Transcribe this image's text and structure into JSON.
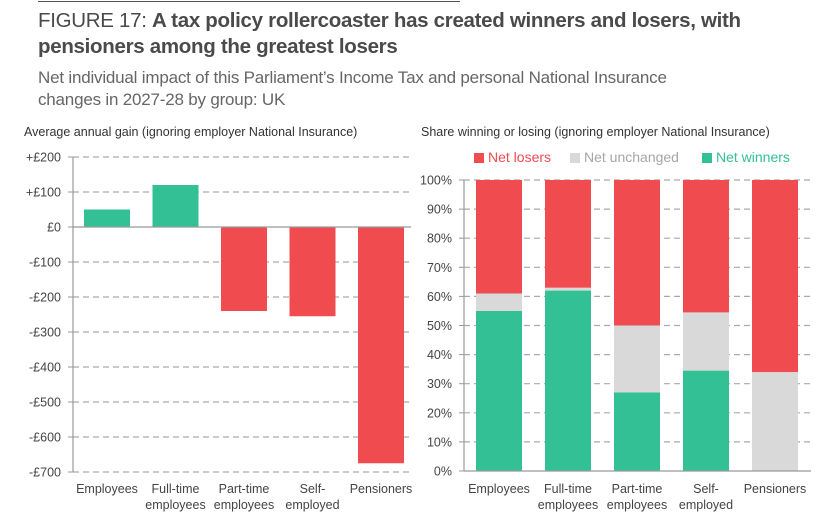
{
  "figure": {
    "prefix": "FIGURE 17: ",
    "title_line1": "A tax policy rollercoaster has created winners and losers, with",
    "title_line2": "pensioners among the greatest losers",
    "subtitle_line1": "Net individual impact of this Parliament’s Income Tax and personal National Insurance",
    "subtitle_line2": "changes in 2027-28 by group: UK"
  },
  "colors": {
    "gain": "#33C094",
    "loss": "#F04B4F",
    "unchanged": "#D9D9D9",
    "grid": "#AAAAAA",
    "axis": "#999999"
  },
  "chart_data": [
    {
      "type": "bar",
      "title": "Average annual gain (ignoring employer National Insurance)",
      "xlabel": "",
      "ylabel": "",
      "categories": [
        [
          "Employees"
        ],
        [
          "Full-time",
          "employees"
        ],
        [
          "Part-time",
          "employees"
        ],
        [
          "Self-",
          "employed"
        ],
        [
          "Pensioners"
        ]
      ],
      "values": [
        50,
        120,
        -240,
        -255,
        -675
      ],
      "ylim": [
        -700,
        200
      ],
      "yticks": [
        200,
        100,
        0,
        -100,
        -200,
        -300,
        -400,
        -500,
        -600,
        -700
      ],
      "ytick_labels": [
        "+£200",
        "+£100",
        "£0",
        "-£100",
        "-£200",
        "-£300",
        "-£400",
        "-£500",
        "-£600",
        "-£700"
      ],
      "grid": true,
      "legend": null
    },
    {
      "type": "bar",
      "stacked": true,
      "title": "Share winning or losing (ignoring employer National Insurance)",
      "xlabel": "",
      "ylabel": "",
      "categories": [
        [
          "Employees"
        ],
        [
          "Full-time",
          "employees"
        ],
        [
          "Part-time",
          "employees"
        ],
        [
          "Self-",
          "employed"
        ],
        [
          "Pensioners"
        ]
      ],
      "series": [
        {
          "name": "Net winners",
          "color_key": "gain",
          "values": [
            55,
            62,
            27,
            34.5,
            0
          ]
        },
        {
          "name": "Net unchanged",
          "color_key": "unchanged",
          "values": [
            6,
            1,
            23,
            20,
            34
          ]
        },
        {
          "name": "Net losers",
          "color_key": "loss",
          "values": [
            39,
            37,
            50,
            45.5,
            66
          ]
        }
      ],
      "legend_order": [
        "Net losers",
        "Net unchanged",
        "Net winners"
      ],
      "legend_placement": "top",
      "ylim": [
        0,
        100
      ],
      "yticks": [
        100,
        90,
        80,
        70,
        60,
        50,
        40,
        30,
        20,
        10,
        0
      ],
      "ytick_labels": [
        "100%",
        "90%",
        "80%",
        "70%",
        "60%",
        "50%",
        "40%",
        "30%",
        "20%",
        "10%",
        "0%"
      ],
      "grid": true
    }
  ]
}
